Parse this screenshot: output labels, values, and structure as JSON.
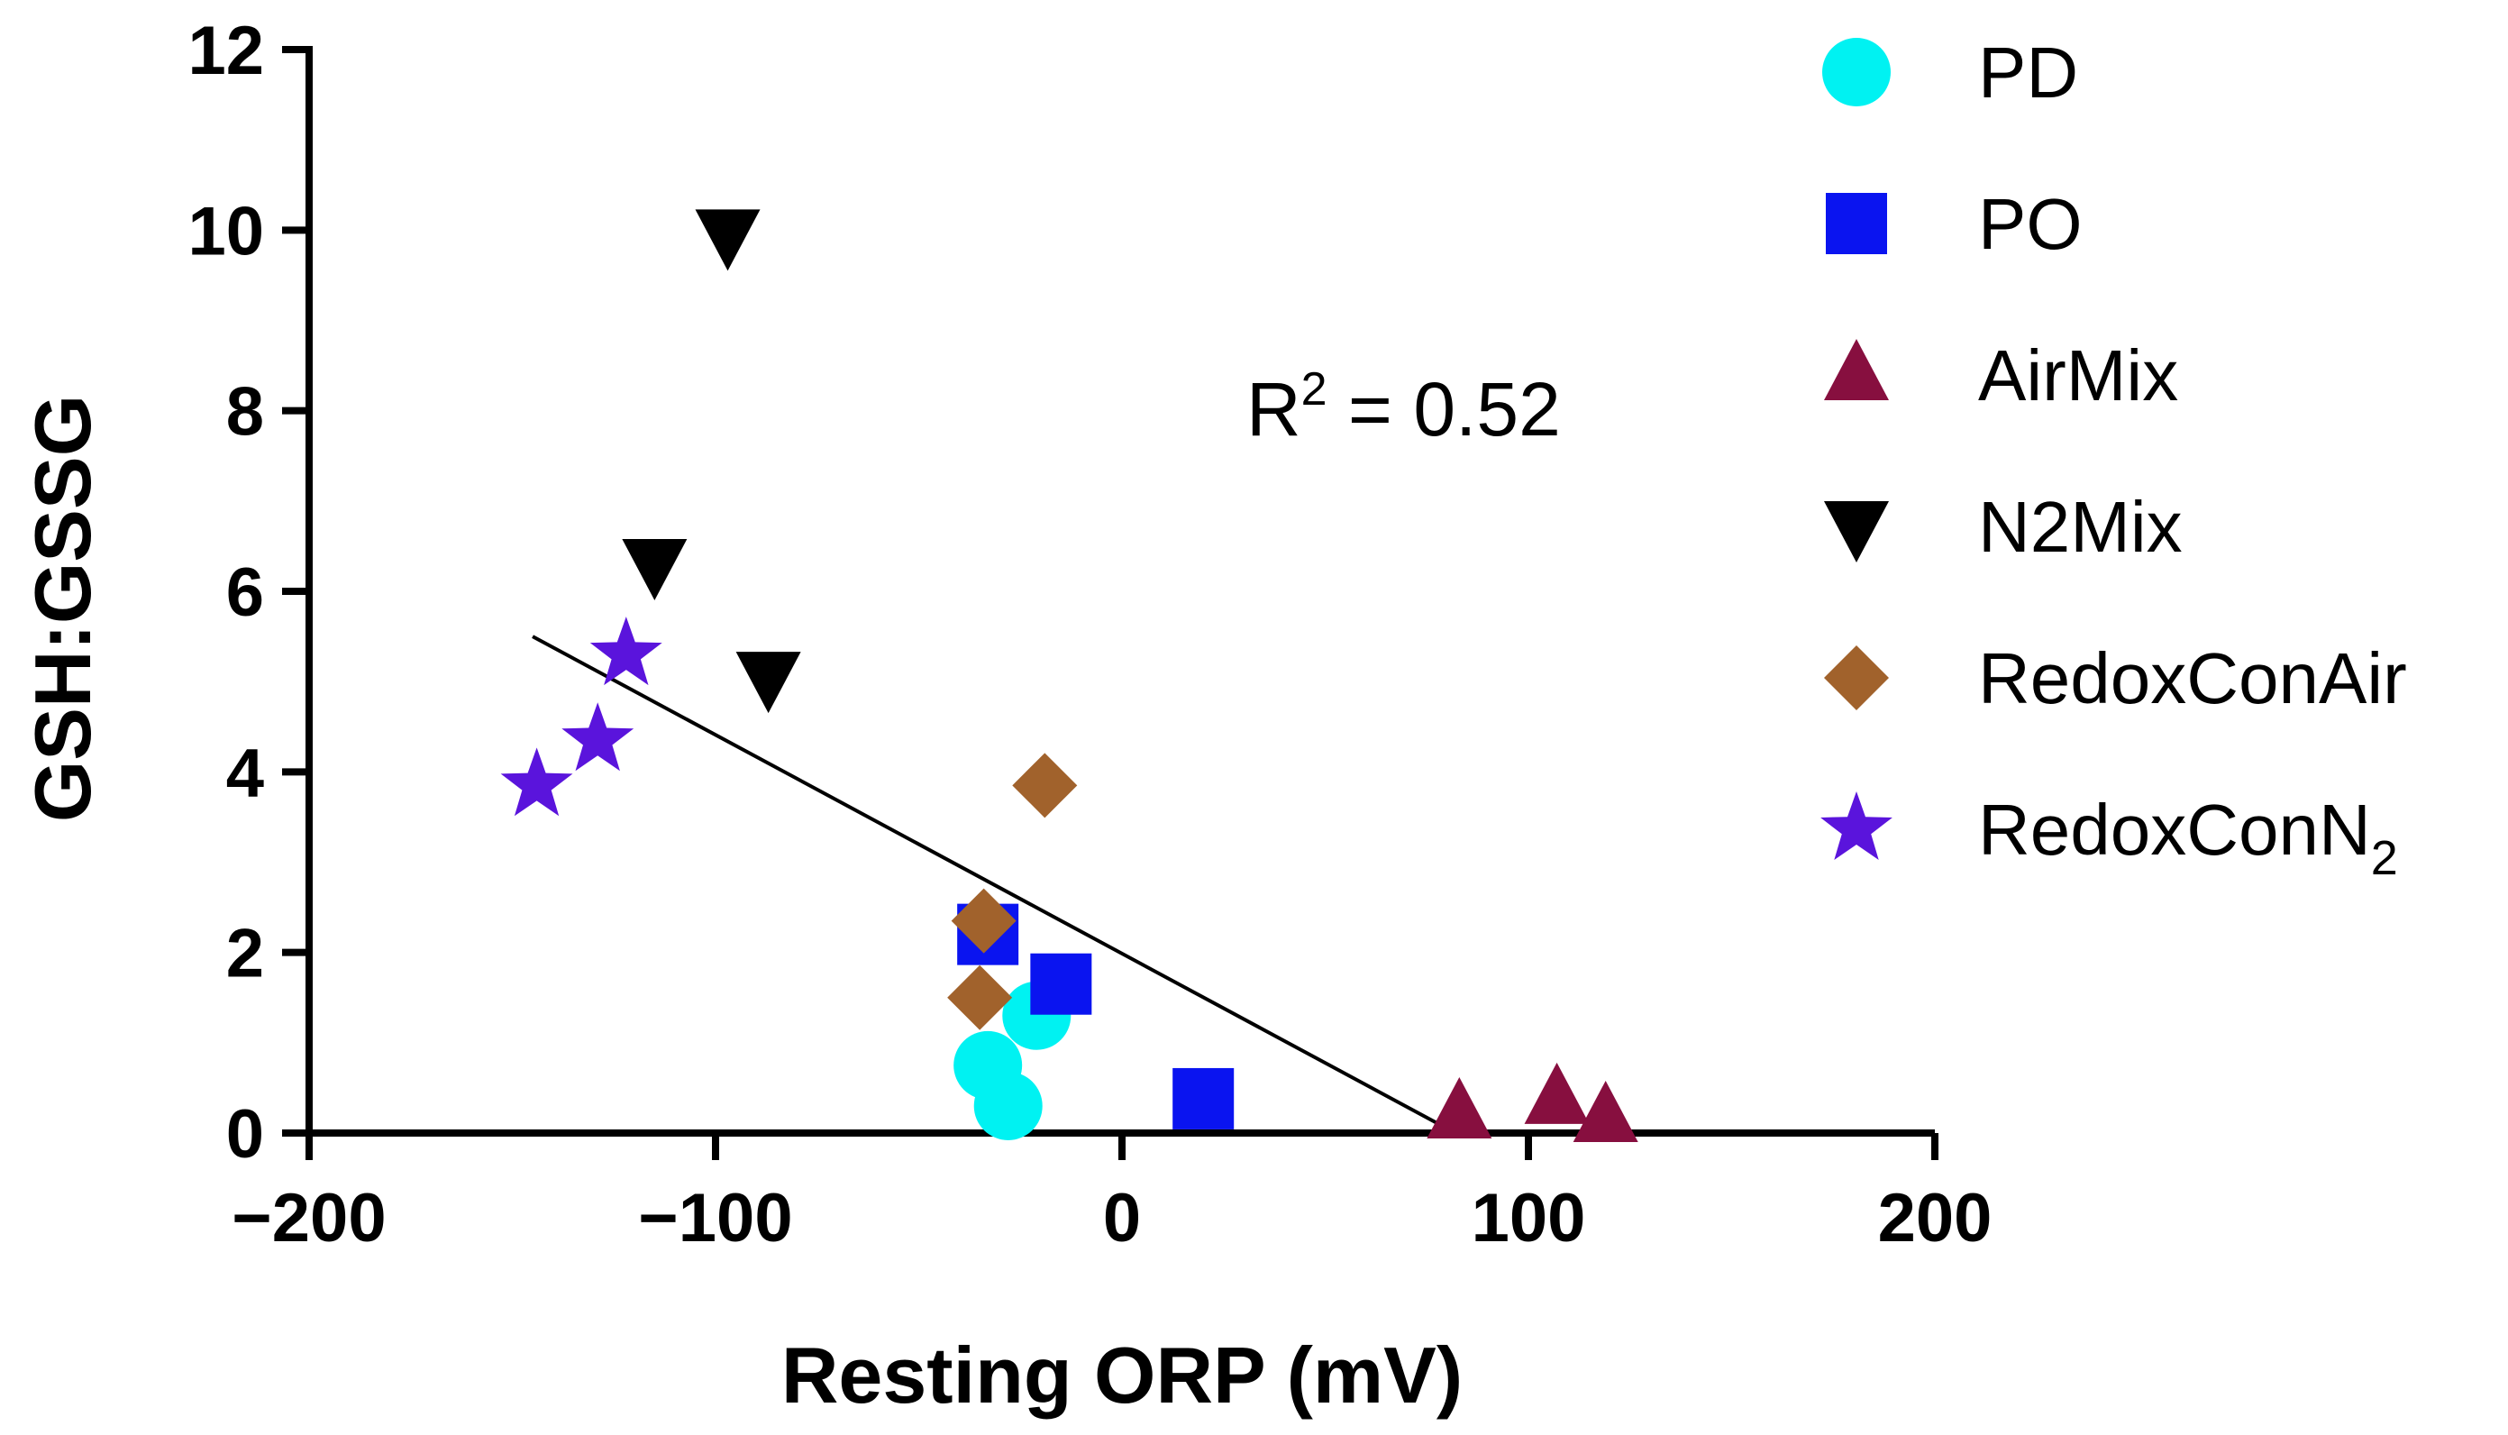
{
  "chart_data": {
    "type": "scatter",
    "title": "",
    "xlabel": "Resting ORP (mV)",
    "ylabel": "GSH:GSSG",
    "xlim": [
      -200,
      200
    ],
    "ylim": [
      0,
      12
    ],
    "xticks": [
      -200,
      -100,
      0,
      100,
      200
    ],
    "xtick_labels": [
      "−200",
      "−100",
      "0",
      "100",
      "200"
    ],
    "yticks": [
      0,
      2,
      4,
      6,
      8,
      10,
      12
    ],
    "ytick_labels": [
      "0",
      "2",
      "4",
      "6",
      "8",
      "10",
      "12"
    ],
    "grid": false,
    "legend_position": "right",
    "annotation": {
      "r_label": "R",
      "r_sup": "2",
      "r_value": " = 0.52"
    },
    "fit_line": {
      "x": [
        -145,
        80
      ],
      "y": [
        5.5,
        0.05
      ]
    },
    "series": [
      {
        "name": "PD",
        "marker": "circle",
        "color": "#00F2F2",
        "x": [
          -33,
          -28,
          -21
        ],
        "y": [
          0.75,
          0.3,
          1.3
        ]
      },
      {
        "name": "PO",
        "marker": "square",
        "color": "#0A14F0",
        "x": [
          -33,
          -15,
          20
        ],
        "y": [
          2.2,
          1.65,
          0.38
        ]
      },
      {
        "name": "AirMix",
        "marker": "triangle-up",
        "color": "#870F3F",
        "x": [
          83,
          107,
          119
        ],
        "y": [
          0.22,
          0.38,
          0.18
        ]
      },
      {
        "name": "N2Mix",
        "marker": "triangle-down",
        "color": "#000000",
        "x": [
          -97,
          -115,
          -87
        ],
        "y": [
          9.95,
          6.3,
          5.05
        ]
      },
      {
        "name": "RedoxConAir",
        "marker": "diamond",
        "color": "#A1622C",
        "x": [
          -19,
          -34,
          -35
        ],
        "y": [
          3.85,
          2.35,
          1.5
        ]
      },
      {
        "name": "RedoxConN2",
        "name_base": "RedoxConN",
        "name_sub": "2",
        "marker": "star",
        "color": "#5A14DC",
        "x": [
          -144,
          -129,
          -122
        ],
        "y": [
          3.85,
          4.35,
          5.3
        ]
      }
    ]
  }
}
